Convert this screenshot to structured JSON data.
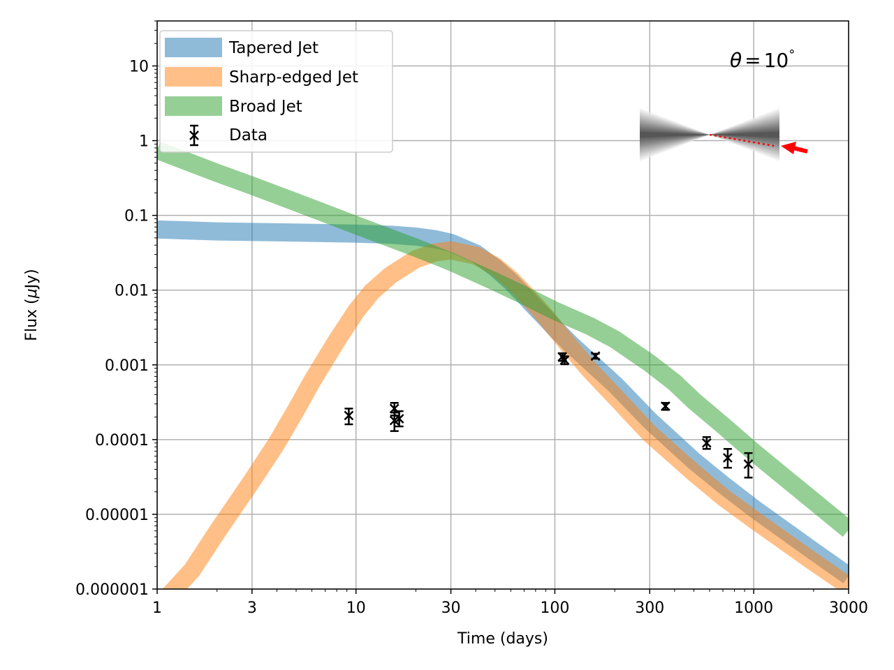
{
  "chart_data": {
    "type": "line",
    "title": "",
    "xlabel": "Time (days)",
    "ylabel": "Flux (μJy)",
    "ylabel_main": "Flux (",
    "ylabel_mu": "μ",
    "ylabel_unit": "Jy)",
    "xscale": "log",
    "yscale": "log",
    "xlim": [
      1,
      3000
    ],
    "ylim": [
      1e-06,
      40
    ],
    "grid": true,
    "legend_position": "top-left",
    "x_ticks": [
      {
        "value": 1,
        "label": "1"
      },
      {
        "value": 3,
        "label": "3"
      },
      {
        "value": 10,
        "label": "10"
      },
      {
        "value": 30,
        "label": "30"
      },
      {
        "value": 100,
        "label": "100"
      },
      {
        "value": 300,
        "label": "300"
      },
      {
        "value": 1000,
        "label": "1000"
      },
      {
        "value": 3000,
        "label": "3000"
      }
    ],
    "y_ticks": [
      {
        "value": 10,
        "label": "10"
      },
      {
        "value": 1,
        "label": "1"
      },
      {
        "value": 0.1,
        "label": "0.1"
      },
      {
        "value": 0.01,
        "label": "0.01"
      },
      {
        "value": 0.001,
        "label": "0.001"
      },
      {
        "value": 0.0001,
        "label": "0.0001"
      },
      {
        "value": 1e-05,
        "label": "0.00001"
      },
      {
        "value": 1e-06,
        "label": "0.000001"
      }
    ],
    "series": [
      {
        "name": "Tapered Jet",
        "color": "#1f77b4",
        "points": [
          [
            1,
            0.065
          ],
          [
            2,
            0.061
          ],
          [
            5,
            0.059
          ],
          [
            10,
            0.057
          ],
          [
            15,
            0.055
          ],
          [
            20,
            0.052
          ],
          [
            25,
            0.048
          ],
          [
            30,
            0.043
          ],
          [
            40,
            0.031
          ],
          [
            50,
            0.02
          ],
          [
            60,
            0.013
          ],
          [
            70,
            0.0085
          ],
          [
            80,
            0.0058
          ],
          [
            90,
            0.0042
          ],
          [
            100,
            0.0031
          ],
          [
            120,
            0.0019
          ],
          [
            150,
            0.0011
          ],
          [
            200,
            0.00055
          ],
          [
            300,
            0.00018
          ],
          [
            500,
            5.2e-05
          ],
          [
            700,
            2.5e-05
          ],
          [
            1000,
            1.2e-05
          ],
          [
            2000,
            3.2e-06
          ],
          [
            3000,
            1.5e-06
          ]
        ]
      },
      {
        "name": "Sharp-edged Jet",
        "color": "#ff7f0e",
        "points": [
          [
            1,
            5.5e-07
          ],
          [
            1.5,
            1.8e-06
          ],
          [
            2,
            5.8e-06
          ],
          [
            3,
            2.8e-05
          ],
          [
            4,
            9e-05
          ],
          [
            5,
            0.00025
          ],
          [
            6,
            0.0006
          ],
          [
            8,
            0.0021
          ],
          [
            10,
            0.0052
          ],
          [
            12,
            0.0095
          ],
          [
            15,
            0.016
          ],
          [
            20,
            0.026
          ],
          [
            25,
            0.032
          ],
          [
            30,
            0.034
          ],
          [
            40,
            0.029
          ],
          [
            50,
            0.021
          ],
          [
            60,
            0.014
          ],
          [
            70,
            0.0092
          ],
          [
            80,
            0.0063
          ],
          [
            90,
            0.0044
          ],
          [
            100,
            0.0031
          ],
          [
            120,
            0.0017
          ],
          [
            150,
            0.00085
          ],
          [
            200,
            0.00038
          ],
          [
            300,
            0.00012
          ],
          [
            500,
            3.6e-05
          ],
          [
            700,
            1.7e-05
          ],
          [
            1000,
            8.5e-06
          ],
          [
            2000,
            2.3e-06
          ],
          [
            3000,
            1.1e-06
          ]
        ]
      },
      {
        "name": "Broad Jet",
        "color": "#2ca02c",
        "points": [
          [
            1,
            0.75
          ],
          [
            2,
            0.37
          ],
          [
            3,
            0.25
          ],
          [
            5,
            0.15
          ],
          [
            10,
            0.074
          ],
          [
            20,
            0.037
          ],
          [
            30,
            0.024
          ],
          [
            40,
            0.017
          ],
          [
            50,
            0.013
          ],
          [
            70,
            0.0085
          ],
          [
            100,
            0.0053
          ],
          [
            150,
            0.0033
          ],
          [
            200,
            0.0022
          ],
          [
            300,
            0.00105
          ],
          [
            400,
            0.00058
          ],
          [
            500,
            0.00033
          ],
          [
            700,
            0.000155
          ],
          [
            1000,
            6.8e-05
          ],
          [
            1500,
            2.8e-05
          ],
          [
            2000,
            1.5e-05
          ],
          [
            3000,
            6.2e-06
          ]
        ]
      }
    ],
    "data_series": {
      "name": "Data",
      "color": "#000000",
      "points": [
        {
          "x": 9.2,
          "y": 0.00021,
          "lo": 0.00016,
          "hi": 0.00026
        },
        {
          "x": 15.6,
          "y": 0.00026,
          "lo": 0.00021,
          "hi": 0.00031
        },
        {
          "x": 15.6,
          "y": 0.00018,
          "lo": 0.00013,
          "hi": 0.00023
        },
        {
          "x": 16.5,
          "y": 0.00019,
          "lo": 0.00015,
          "hi": 0.00024
        },
        {
          "x": 109,
          "y": 0.00128,
          "lo": 0.00113,
          "hi": 0.00143
        },
        {
          "x": 112,
          "y": 0.00116,
          "lo": 0.00102,
          "hi": 0.0013
        },
        {
          "x": 160,
          "y": 0.00131,
          "lo": 0.00121,
          "hi": 0.00141
        },
        {
          "x": 360,
          "y": 0.00028,
          "lo": 0.00025,
          "hi": 0.00031
        },
        {
          "x": 580,
          "y": 9e-05,
          "lo": 7.5e-05,
          "hi": 0.000108
        },
        {
          "x": 740,
          "y": 5.7e-05,
          "lo": 4.2e-05,
          "hi": 7.5e-05
        },
        {
          "x": 940,
          "y": 4.7e-05,
          "lo": 3.1e-05,
          "hi": 6.6e-05
        }
      ]
    },
    "annotation": {
      "symbol": "θ",
      "equals": "=",
      "value": "10",
      "unit": "°"
    },
    "inset_arrow_color": "#ff0000"
  }
}
